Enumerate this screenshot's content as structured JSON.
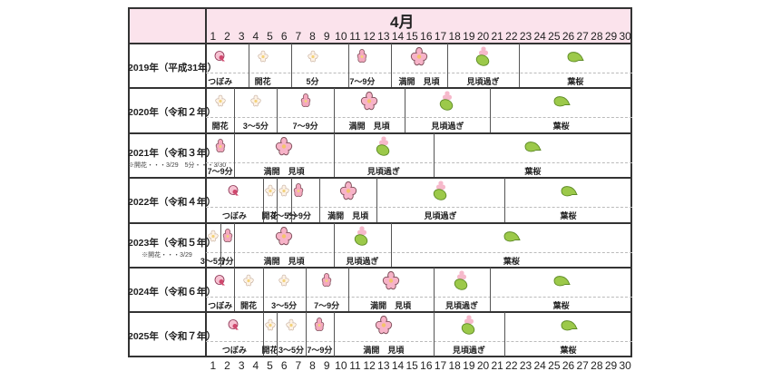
{
  "chart_data": {
    "type": "table",
    "title": "4月",
    "xlabel": "Day of April",
    "days": [
      1,
      2,
      3,
      4,
      5,
      6,
      7,
      8,
      9,
      10,
      11,
      12,
      13,
      14,
      15,
      16,
      17,
      18,
      19,
      20,
      21,
      22,
      23,
      24,
      25,
      26,
      27,
      28,
      29,
      30
    ],
    "stage_legend": {
      "bud": "つぼみ",
      "bloom_start": "開花",
      "p5": "5分",
      "p3_5": "3～5分",
      "p7_9": "7～9分",
      "full": "満開　見頃",
      "past": "見頃過ぎ",
      "leaf": "葉桜"
    },
    "rows": [
      {
        "year": "2019年（平成31年）",
        "note": "",
        "segments": [
          {
            "start": 1,
            "end": 3,
            "label": "つぼみ",
            "icon": "bud"
          },
          {
            "start": 4,
            "end": 6,
            "label": "開花",
            "icon": "bloom-start"
          },
          {
            "start": 7,
            "end": 10,
            "label": "5分",
            "icon": "bloom-start"
          },
          {
            "start": 11,
            "end": 13,
            "label": "7～9分",
            "icon": "bloom-partial"
          },
          {
            "start": 14,
            "end": 18,
            "label": "満開　見頃",
            "icon": "full"
          },
          {
            "start": 18,
            "end": 23,
            "label": "見頃過ぎ",
            "icon": "past"
          },
          {
            "start": 23,
            "end": 31,
            "label": "葉桜",
            "icon": "leaf"
          }
        ]
      },
      {
        "year": "2020年（令和２年）",
        "note": "",
        "segments": [
          {
            "start": 1,
            "end": 3,
            "label": "開花",
            "icon": "bloom-start"
          },
          {
            "start": 3,
            "end": 6,
            "label": "3～5分",
            "icon": "bloom-start"
          },
          {
            "start": 6,
            "end": 10,
            "label": "7～9分",
            "icon": "bloom-partial"
          },
          {
            "start": 10,
            "end": 15,
            "label": "満開　見頃",
            "icon": "full"
          },
          {
            "start": 15,
            "end": 21,
            "label": "見頃過ぎ",
            "icon": "past"
          },
          {
            "start": 21,
            "end": 31,
            "label": "葉桜",
            "icon": "leaf"
          }
        ]
      },
      {
        "year": "2021年（令和３年）",
        "note": "※開花・・・3/29　5分・・・3/30",
        "segments": [
          {
            "start": 1,
            "end": 3,
            "label": "7～9分",
            "icon": "bloom-partial"
          },
          {
            "start": 3,
            "end": 10,
            "label": "満開　見頃",
            "icon": "full"
          },
          {
            "start": 10,
            "end": 17,
            "label": "見頃過ぎ",
            "icon": "past"
          },
          {
            "start": 17,
            "end": 31,
            "label": "葉桜",
            "icon": "leaf"
          }
        ]
      },
      {
        "year": "2022年（令和４年）",
        "note": "",
        "segments": [
          {
            "start": 1,
            "end": 5,
            "label": "つぼみ",
            "icon": "bud"
          },
          {
            "start": 5,
            "end": 6,
            "label": "開花",
            "icon": "bloom-start"
          },
          {
            "start": 6,
            "end": 7,
            "label": "3～5分",
            "icon": "bloom-start"
          },
          {
            "start": 7,
            "end": 8,
            "label": "7～9分",
            "icon": "bloom-partial"
          },
          {
            "start": 9,
            "end": 13,
            "label": "満開　見頃",
            "icon": "full"
          },
          {
            "start": 13,
            "end": 22,
            "label": "見頃過ぎ",
            "icon": "past"
          },
          {
            "start": 22,
            "end": 31,
            "label": "葉桜",
            "icon": "leaf"
          }
        ]
      },
      {
        "year": "2023年（令和５年）",
        "note": "※開花・・・3/29",
        "segments": [
          {
            "start": 1,
            "end": 2,
            "label": "3～5分",
            "icon": "bloom-start"
          },
          {
            "start": 2,
            "end": 3,
            "label": "7分",
            "icon": "bloom-partial"
          },
          {
            "start": 3,
            "end": 10,
            "label": "満開　見頃",
            "icon": "full"
          },
          {
            "start": 10,
            "end": 14,
            "label": "見頃過ぎ",
            "icon": "past"
          },
          {
            "start": 14,
            "end": 31,
            "label": "葉桜",
            "icon": "leaf"
          }
        ]
      },
      {
        "year": "2024年（令和６年）",
        "note": "",
        "segments": [
          {
            "start": 1,
            "end": 3,
            "label": "つぼみ",
            "icon": "bud"
          },
          {
            "start": 3,
            "end": 5,
            "label": "開花",
            "icon": "bloom-start"
          },
          {
            "start": 5,
            "end": 8,
            "label": "3～5分",
            "icon": "bloom-start"
          },
          {
            "start": 8,
            "end": 11,
            "label": "7～9分",
            "icon": "bloom-partial"
          },
          {
            "start": 11,
            "end": 17,
            "label": "満開　見頃",
            "icon": "full"
          },
          {
            "start": 17,
            "end": 21,
            "label": "見頃過ぎ",
            "icon": "past"
          },
          {
            "start": 21,
            "end": 31,
            "label": "葉桜",
            "icon": "leaf"
          }
        ]
      },
      {
        "year": "2025年（令和７年）",
        "note": "",
        "segments": [
          {
            "start": 1,
            "end": 5,
            "label": "つぼみ",
            "icon": "bud"
          },
          {
            "start": 5,
            "end": 6,
            "label": "開花",
            "icon": "bloom-start"
          },
          {
            "start": 6,
            "end": 8,
            "label": "3～5分",
            "icon": "bloom-start"
          },
          {
            "start": 8,
            "end": 10,
            "label": "7～9分",
            "icon": "bloom-partial"
          },
          {
            "start": 10,
            "end": 17,
            "label": "満開　見頃",
            "icon": "full"
          },
          {
            "start": 17,
            "end": 22,
            "label": "見頃過ぎ",
            "icon": "past"
          },
          {
            "start": 22,
            "end": 31,
            "label": "葉桜",
            "icon": "leaf"
          }
        ]
      }
    ]
  },
  "colors": {
    "header_bg": "#fbe3ec",
    "border": "#333333",
    "petal_light": "#fdf2e6",
    "petal_pink": "#f4a9bf",
    "petal_full": "#f7b3c8",
    "bud": "#d0486e",
    "leaf": "#9cc94a",
    "leaf_edge": "#5d8a25"
  }
}
